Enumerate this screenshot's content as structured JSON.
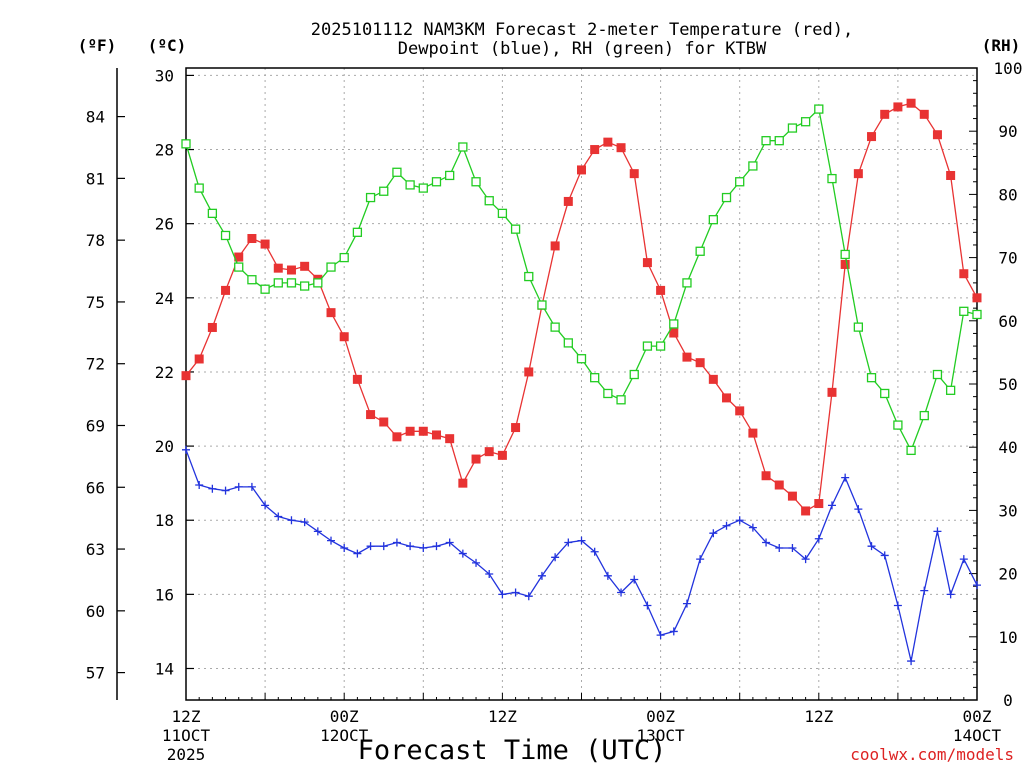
{
  "chart_data": {
    "type": "line",
    "title_line1": "2025101112 NAM3KM Forecast 2-meter Temperature (red),",
    "title_line2": "Dewpoint (blue), RH (green) for KTBW",
    "xlabel": "Forecast Time (UTC)",
    "credit": "coolwx.com/models",
    "unit_f": "(ºF)",
    "unit_c": "(ºC)",
    "unit_rh": "(RH)",
    "x_range_hours": [
      0,
      60
    ],
    "x_ticks": [
      {
        "hour": 0,
        "line1": "12Z",
        "line2": "11OCT",
        "line3": "2025"
      },
      {
        "hour": 12,
        "line1": "00Z",
        "line2": "12OCT",
        "line3": ""
      },
      {
        "hour": 24,
        "line1": "12Z",
        "line2": "",
        "line3": ""
      },
      {
        "hour": 36,
        "line1": "00Z",
        "line2": "13OCT",
        "line3": ""
      },
      {
        "hour": 48,
        "line1": "12Z",
        "line2": "",
        "line3": ""
      },
      {
        "hour": 60,
        "line1": "00Z",
        "line2": "14OCT",
        "line3": ""
      }
    ],
    "ylim_c": [
      13.15,
      30.2
    ],
    "y_ticks_c": [
      "14",
      "16",
      "18",
      "20",
      "22",
      "24",
      "26",
      "28",
      "30"
    ],
    "y_ticks_f": [
      "57",
      "60",
      "63",
      "66",
      "69",
      "72",
      "75",
      "78",
      "81",
      "84"
    ],
    "ylim_rh": [
      0,
      100
    ],
    "y_ticks_rh": [
      "0",
      "10",
      "20",
      "30",
      "40",
      "50",
      "60",
      "70",
      "80",
      "90",
      "100"
    ],
    "series": [
      {
        "name": "2-meter Temperature",
        "unit": "C",
        "color": "#e83333",
        "values": [
          21.9,
          22.35,
          23.2,
          24.2,
          25.1,
          25.6,
          25.45,
          24.8,
          24.75,
          24.85,
          24.5,
          23.6,
          22.95,
          21.8,
          20.85,
          20.65,
          20.25,
          20.4,
          20.4,
          20.3,
          20.2,
          19.0,
          19.65,
          19.85,
          19.75,
          20.5,
          22.0,
          23.8,
          25.4,
          26.6,
          27.45,
          28.0,
          28.2,
          28.05,
          27.35,
          24.95,
          24.2,
          23.05,
          22.4,
          22.25,
          21.8,
          21.3,
          20.95,
          20.35,
          19.2,
          18.95,
          18.65,
          18.25,
          18.45,
          21.45,
          24.9,
          27.35,
          28.35,
          28.95,
          29.15,
          29.25,
          28.95,
          28.4,
          27.3,
          24.65,
          24.0
        ]
      },
      {
        "name": "Dewpoint",
        "unit": "C",
        "color": "#2233dd",
        "values": [
          19.9,
          18.95,
          18.85,
          18.8,
          18.9,
          18.9,
          18.4,
          18.1,
          18.0,
          17.95,
          17.7,
          17.45,
          17.25,
          17.1,
          17.3,
          17.3,
          17.4,
          17.3,
          17.25,
          17.3,
          17.4,
          17.1,
          16.85,
          16.55,
          16.0,
          16.05,
          15.95,
          16.5,
          17.0,
          17.4,
          17.45,
          17.15,
          16.5,
          16.05,
          16.4,
          15.7,
          14.9,
          15.0,
          15.75,
          16.95,
          17.65,
          17.85,
          18.0,
          17.8,
          17.4,
          17.25,
          17.25,
          16.95,
          17.5,
          18.4,
          19.15,
          18.3,
          17.3,
          17.05,
          15.7,
          14.2,
          16.1,
          17.7,
          16.0,
          16.95,
          16.25
        ]
      },
      {
        "name": "RH",
        "unit": "%",
        "color": "#22cc22",
        "values": [
          88.0,
          81.0,
          77.0,
          73.5,
          68.5,
          66.5,
          65.0,
          66.0,
          66.0,
          65.5,
          66.0,
          68.5,
          70.0,
          74.0,
          79.5,
          80.5,
          83.5,
          81.5,
          81.0,
          82.0,
          83.0,
          87.5,
          82.0,
          79.0,
          77.0,
          74.5,
          67.0,
          62.5,
          59.0,
          56.5,
          54.0,
          51.0,
          48.5,
          47.5,
          51.5,
          56.0,
          56.0,
          59.5,
          66.0,
          71.0,
          76.0,
          79.5,
          82.0,
          84.5,
          88.5,
          88.5,
          90.5,
          91.5,
          93.5,
          82.5,
          70.5,
          59.0,
          51.0,
          48.5,
          43.5,
          39.5,
          45.0,
          51.5,
          49.0,
          61.5,
          61.0
        ]
      }
    ]
  }
}
